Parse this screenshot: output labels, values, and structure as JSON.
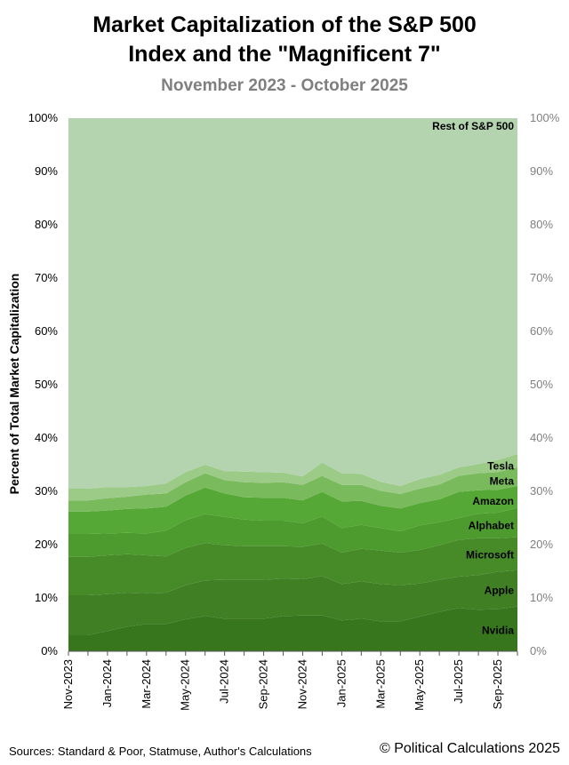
{
  "header": {
    "title_line1": "Market Capitalization of the S&P 500",
    "title_line2": "Index and the \"Magnificent 7\"",
    "subtitle": "November 2023 - October 2025"
  },
  "footer": {
    "sources": "Sources: Standard & Poor, Statmuse, Author's Calculations",
    "copyright": "© Political Calculations 2025"
  },
  "chart_data": {
    "type": "area",
    "stacked": true,
    "ylabel": "Percent of Total Market Capitalization",
    "ylim": [
      0,
      100
    ],
    "y_ticks": [
      "0%",
      "10%",
      "20%",
      "30%",
      "40%",
      "50%",
      "60%",
      "70%",
      "80%",
      "90%",
      "100%"
    ],
    "y_tick_values": [
      0,
      10,
      20,
      30,
      40,
      50,
      60,
      70,
      80,
      90,
      100
    ],
    "x_tick_labels": [
      "Nov-2023",
      "Jan-2024",
      "Mar-2024",
      "May-2024",
      "Jul-2024",
      "Sep-2024",
      "Nov-2024",
      "Jan-2025",
      "Mar-2025",
      "May-2025",
      "Jul-2025",
      "Sep-2025"
    ],
    "x": [
      "Nov-2023",
      "Dec-2023",
      "Jan-2024",
      "Feb-2024",
      "Mar-2024",
      "Apr-2024",
      "May-2024",
      "Jun-2024",
      "Jul-2024",
      "Aug-2024",
      "Sep-2024",
      "Oct-2024",
      "Nov-2024",
      "Dec-2024",
      "Jan-2025",
      "Feb-2025",
      "Mar-2025",
      "Apr-2025",
      "May-2025",
      "Jun-2025",
      "Jul-2025",
      "Aug-2025",
      "Sep-2025",
      "Oct-2025"
    ],
    "grid": false,
    "series": [
      {
        "name": "Nvidia",
        "color": "#38761d",
        "values": [
          3.0,
          3.0,
          3.8,
          4.6,
          5.1,
          5.1,
          6.0,
          6.6,
          6.1,
          6.1,
          6.1,
          6.6,
          6.7,
          6.7,
          5.8,
          6.1,
          5.6,
          5.6,
          6.5,
          7.4,
          8.1,
          7.8,
          7.9,
          8.4
        ]
      },
      {
        "name": "Apple",
        "color": "#407f24",
        "values": [
          7.5,
          7.5,
          6.9,
          6.4,
          5.8,
          5.9,
          6.4,
          6.7,
          7.3,
          7.3,
          7.3,
          7.0,
          6.8,
          7.4,
          6.8,
          7.0,
          7.0,
          6.8,
          6.2,
          6.0,
          5.9,
          6.5,
          7.0,
          6.8
        ]
      },
      {
        "name": "Microsoft",
        "color": "#478b29",
        "values": [
          7.2,
          7.2,
          7.3,
          7.2,
          7.1,
          6.8,
          7.0,
          7.0,
          6.5,
          6.3,
          6.3,
          6.1,
          6.1,
          6.1,
          5.9,
          6.1,
          6.3,
          6.1,
          6.3,
          6.5,
          6.9,
          6.9,
          6.3,
          6.2
        ]
      },
      {
        "name": "Alphabet",
        "color": "#4d9a2e",
        "values": [
          4.3,
          4.3,
          4.1,
          4.0,
          4.1,
          4.8,
          5.2,
          5.4,
          5.3,
          5.0,
          4.8,
          4.8,
          4.4,
          5.1,
          4.6,
          4.5,
          4.2,
          4.0,
          4.6,
          4.3,
          4.1,
          4.6,
          4.8,
          5.5
        ]
      },
      {
        "name": "Amazon",
        "color": "#55a835",
        "values": [
          4.2,
          4.2,
          4.3,
          4.5,
          4.7,
          4.5,
          4.6,
          5.0,
          4.4,
          4.2,
          4.3,
          4.3,
          4.3,
          4.6,
          5.0,
          4.5,
          4.2,
          4.3,
          4.2,
          4.3,
          4.9,
          4.4,
          4.3,
          4.1
        ]
      },
      {
        "name": "Meta",
        "color": "#79ba5c",
        "values": [
          2.1,
          2.1,
          2.3,
          2.3,
          2.6,
          2.5,
          2.5,
          2.7,
          2.5,
          2.8,
          2.8,
          2.9,
          2.9,
          3.0,
          3.1,
          3.0,
          2.8,
          2.7,
          2.7,
          2.8,
          3.0,
          3.2,
          3.3,
          3.5
        ]
      },
      {
        "name": "Tesla",
        "color": "#9cca87",
        "values": [
          2.2,
          2.2,
          2.1,
          1.8,
          1.6,
          1.9,
          1.9,
          1.6,
          1.7,
          2.0,
          2.0,
          1.8,
          1.6,
          2.5,
          2.2,
          2.1,
          1.7,
          1.5,
          1.8,
          1.8,
          1.6,
          1.7,
          2.3,
          2.5
        ]
      },
      {
        "name": "Rest of S&P 500",
        "color": "#b4d4b0",
        "values": [
          69.5,
          69.5,
          69.2,
          69.2,
          69.0,
          68.5,
          66.4,
          65.0,
          66.2,
          66.3,
          66.4,
          66.5,
          67.2,
          64.6,
          66.6,
          66.7,
          68.2,
          69.0,
          67.7,
          66.9,
          65.5,
          64.9,
          64.1,
          63.0
        ]
      }
    ]
  }
}
